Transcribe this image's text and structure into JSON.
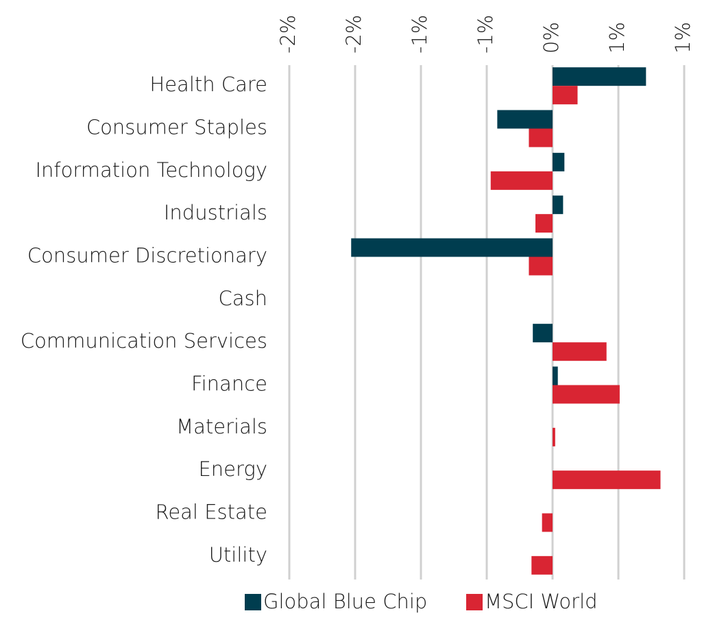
{
  "chart_data": {
    "type": "bar",
    "orientation": "horizontal",
    "categories": [
      "Health Care",
      "Consumer Staples",
      "Information Technology",
      "Industrials",
      "Consumer Discretionary",
      "Cash",
      "Communication Services",
      "Finance",
      "Materials",
      "Energy",
      "Real Estate",
      "Utility"
    ],
    "series": [
      {
        "name": "Global Blue Chip",
        "color": "#003d4f",
        "values": [
          0.71,
          -0.42,
          0.09,
          0.08,
          -1.53,
          0,
          -0.15,
          0.04,
          0,
          0,
          0,
          0
        ]
      },
      {
        "name": "MSCI World",
        "color": "#d92533",
        "values": [
          0.19,
          -0.18,
          -0.47,
          -0.13,
          -0.18,
          0,
          0.41,
          0.51,
          0.02,
          0.82,
          -0.08,
          -0.16
        ]
      }
    ],
    "xlim": [
      -2,
      1
    ],
    "xticks": [
      {
        "value": -2,
        "label": "-2%"
      },
      {
        "value": -1.5,
        "label": "-2%"
      },
      {
        "value": -1,
        "label": "-1%"
      },
      {
        "value": -0.5,
        "label": "-1%"
      },
      {
        "value": 0,
        "label": "0%"
      },
      {
        "value": 0.5,
        "label": "1%"
      },
      {
        "value": 1,
        "label": "1%"
      }
    ],
    "grid": true,
    "legend": "bottom"
  }
}
